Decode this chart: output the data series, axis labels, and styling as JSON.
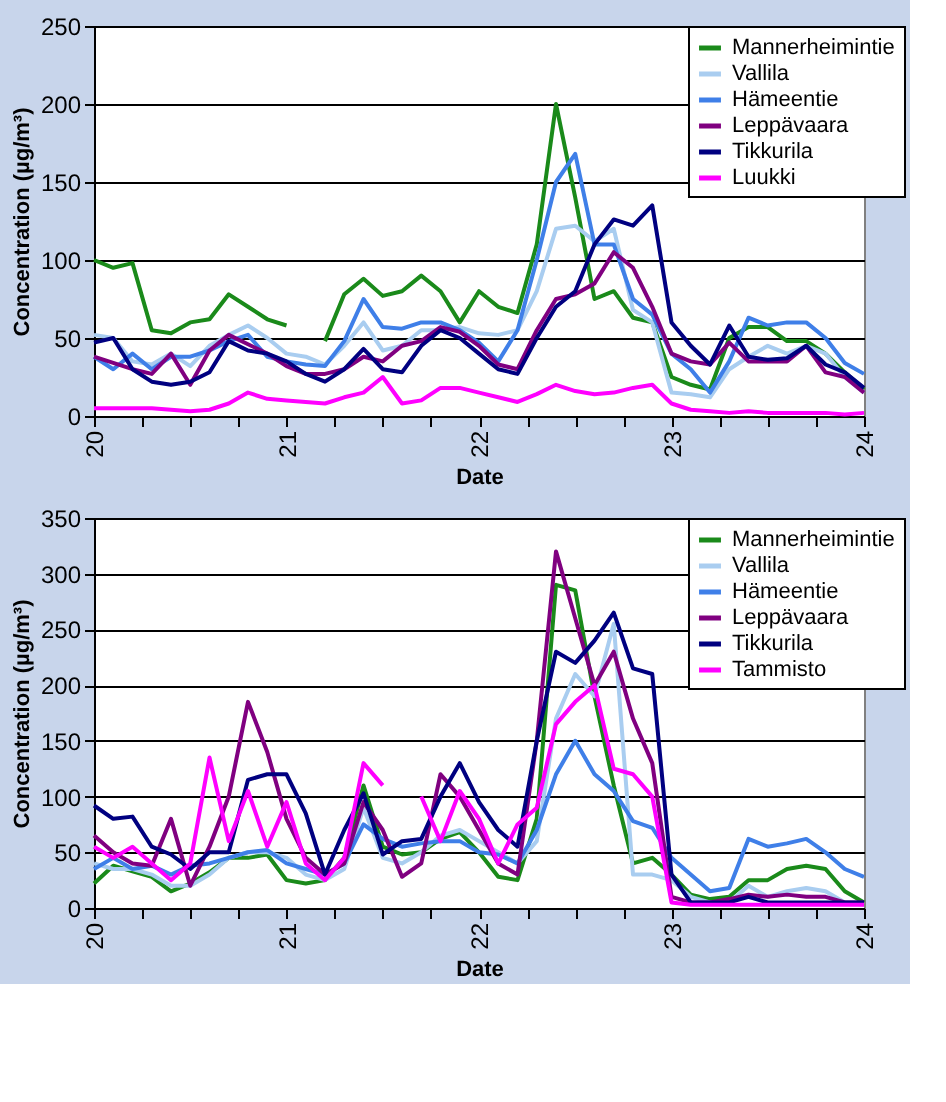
{
  "chart_data": [
    {
      "type": "line",
      "xlabel": "Date",
      "ylabel": "Concentration (µg/m³)",
      "xlim": [
        20,
        24
      ],
      "xticks": [
        20,
        {
          "value": 20.25,
          "label": null
        },
        {
          "value": 20.5,
          "label": null
        },
        {
          "value": 20.75,
          "label": null
        },
        21,
        {
          "value": 21.25,
          "label": null
        },
        {
          "value": 21.5,
          "label": null
        },
        {
          "value": 21.75,
          "label": null
        },
        22,
        {
          "value": 22.25,
          "label": null
        },
        {
          "value": 22.5,
          "label": null
        },
        {
          "value": 22.75,
          "label": null
        },
        23,
        {
          "value": 23.25,
          "label": null
        },
        {
          "value": 23.5,
          "label": null
        },
        {
          "value": 23.75,
          "label": null
        },
        24
      ],
      "ylim": [
        0,
        250
      ],
      "yticks": [
        0,
        50,
        100,
        150,
        200,
        250
      ],
      "grid": "y",
      "legend": "top right",
      "x": [
        20.0,
        20.1,
        20.2,
        20.3,
        20.4,
        20.5,
        20.6,
        20.7,
        20.8,
        20.9,
        21.0,
        21.1,
        21.2,
        21.3,
        21.4,
        21.5,
        21.6,
        21.7,
        21.8,
        21.9,
        22.0,
        22.1,
        22.2,
        22.3,
        22.4,
        22.5,
        22.6,
        22.7,
        22.8,
        22.9,
        23.0,
        23.1,
        23.2,
        23.3,
        23.4,
        23.5,
        23.6,
        23.7,
        23.8,
        23.9,
        24.0
      ],
      "series": [
        {
          "name": "Mannerheimintie",
          "color": "#1a8a1a",
          "values": [
            100,
            95,
            98,
            55,
            53,
            60,
            62,
            78,
            70,
            62,
            58,
            null,
            48,
            78,
            88,
            77,
            80,
            90,
            80,
            60,
            80,
            70,
            66,
            110,
            200,
            140,
            75,
            80,
            63,
            60,
            25,
            20,
            17,
            50,
            57,
            57,
            48,
            48,
            40,
            28,
            17
          ]
        },
        {
          "name": "Vallila",
          "color": "#a9cdf0",
          "values": [
            52,
            50,
            35,
            33,
            40,
            32,
            45,
            52,
            58,
            50,
            40,
            38,
            33,
            45,
            60,
            42,
            45,
            55,
            55,
            57,
            53,
            52,
            55,
            80,
            120,
            122,
            112,
            120,
            68,
            60,
            15,
            14,
            12,
            30,
            38,
            45,
            40,
            45,
            40,
            25,
            15
          ]
        },
        {
          "name": "Hämeentie",
          "color": "#3f7fe8",
          "values": [
            38,
            30,
            40,
            30,
            38,
            38,
            42,
            48,
            52,
            38,
            35,
            33,
            32,
            48,
            75,
            57,
            56,
            60,
            60,
            55,
            47,
            35,
            55,
            100,
            150,
            168,
            110,
            110,
            75,
            65,
            40,
            30,
            15,
            35,
            63,
            58,
            60,
            60,
            50,
            34,
            27
          ]
        },
        {
          "name": "Leppävaara",
          "color": "#800080",
          "values": [
            38,
            34,
            30,
            27,
            40,
            20,
            42,
            52,
            46,
            40,
            32,
            27,
            27,
            30,
            38,
            35,
            45,
            48,
            57,
            54,
            45,
            33,
            30,
            55,
            75,
            78,
            85,
            105,
            95,
            70,
            40,
            35,
            33,
            47,
            35,
            35,
            35,
            45,
            28,
            25,
            15
          ]
        },
        {
          "name": "Tikkurila",
          "color": "#000080",
          "values": [
            47,
            50,
            30,
            22,
            20,
            22,
            28,
            48,
            42,
            40,
            35,
            27,
            22,
            30,
            43,
            30,
            28,
            45,
            55,
            50,
            40,
            30,
            27,
            50,
            70,
            80,
            110,
            126,
            122,
            135,
            60,
            45,
            33,
            58,
            38,
            36,
            37,
            45,
            33,
            28,
            18
          ]
        },
        {
          "name": "Luukki",
          "color": "#ff00ff",
          "values": [
            5,
            5,
            5,
            5,
            4,
            3,
            4,
            8,
            15,
            11,
            10,
            9,
            8,
            12,
            15,
            25,
            8,
            10,
            18,
            18,
            15,
            12,
            9,
            14,
            20,
            16,
            14,
            15,
            18,
            20,
            8,
            4,
            3,
            2,
            3,
            2,
            2,
            2,
            2,
            1,
            2
          ]
        }
      ]
    },
    {
      "type": "line",
      "xlabel": "Date",
      "ylabel": "Concentration (µg/m³)",
      "xlim": [
        20,
        24
      ],
      "xticks": [
        20,
        {
          "value": 20.25,
          "label": null
        },
        {
          "value": 20.5,
          "label": null
        },
        {
          "value": 20.75,
          "label": null
        },
        21,
        {
          "value": 21.25,
          "label": null
        },
        {
          "value": 21.5,
          "label": null
        },
        {
          "value": 21.75,
          "label": null
        },
        22,
        {
          "value": 22.25,
          "label": null
        },
        {
          "value": 22.5,
          "label": null
        },
        {
          "value": 22.75,
          "label": null
        },
        23,
        {
          "value": 23.25,
          "label": null
        },
        {
          "value": 23.5,
          "label": null
        },
        {
          "value": 23.75,
          "label": null
        },
        24
      ],
      "ylim": [
        0,
        350
      ],
      "yticks": [
        0,
        50,
        100,
        150,
        200,
        250,
        300,
        350
      ],
      "grid": "y",
      "legend": "top right",
      "x": [
        20.0,
        20.1,
        20.2,
        20.3,
        20.4,
        20.5,
        20.6,
        20.7,
        20.8,
        20.9,
        21.0,
        21.1,
        21.2,
        21.3,
        21.4,
        21.5,
        21.6,
        21.7,
        21.8,
        21.9,
        22.0,
        22.1,
        22.2,
        22.3,
        22.4,
        22.5,
        22.6,
        22.7,
        22.8,
        22.9,
        23.0,
        23.1,
        23.2,
        23.3,
        23.4,
        23.5,
        23.6,
        23.7,
        23.8,
        23.9,
        24.0
      ],
      "series": [
        {
          "name": "Mannerheimintie",
          "color": "#1a8a1a",
          "values": [
            22,
            38,
            33,
            28,
            15,
            22,
            32,
            45,
            45,
            48,
            25,
            22,
            25,
            45,
            110,
            55,
            48,
            50,
            62,
            68,
            50,
            28,
            25,
            80,
            290,
            285,
            190,
            110,
            40,
            45,
            30,
            12,
            8,
            10,
            25,
            25,
            35,
            38,
            35,
            15,
            5
          ]
        },
        {
          "name": "Vallila",
          "color": "#a9cdf0",
          "values": [
            40,
            35,
            35,
            30,
            20,
            20,
            30,
            45,
            50,
            50,
            45,
            30,
            25,
            35,
            90,
            45,
            40,
            50,
            65,
            70,
            60,
            50,
            40,
            60,
            170,
            210,
            190,
            255,
            30,
            30,
            25,
            10,
            5,
            5,
            20,
            10,
            15,
            18,
            15,
            5,
            3
          ]
        },
        {
          "name": "Hämeentie",
          "color": "#3f7fe8",
          "values": [
            35,
            45,
            35,
            38,
            30,
            38,
            40,
            45,
            50,
            52,
            40,
            35,
            30,
            40,
            75,
            62,
            55,
            58,
            60,
            60,
            50,
            48,
            40,
            70,
            120,
            150,
            120,
            105,
            78,
            72,
            45,
            30,
            15,
            18,
            62,
            55,
            58,
            62,
            50,
            35,
            28
          ]
        },
        {
          "name": "Leppävaara",
          "color": "#800080",
          "values": [
            65,
            50,
            40,
            38,
            80,
            20,
            55,
            100,
            185,
            140,
            80,
            45,
            30,
            40,
            95,
            70,
            28,
            40,
            120,
            100,
            70,
            40,
            30,
            150,
            320,
            260,
            200,
            230,
            170,
            130,
            10,
            5,
            5,
            8,
            12,
            10,
            12,
            10,
            10,
            5,
            5
          ]
        },
        {
          "name": "Tikkurila",
          "color": "#000080",
          "values": [
            92,
            80,
            82,
            55,
            48,
            35,
            50,
            50,
            115,
            120,
            120,
            85,
            30,
            70,
            103,
            48,
            60,
            62,
            100,
            130,
            95,
            70,
            55,
            150,
            230,
            220,
            240,
            265,
            215,
            210,
            30,
            5,
            5,
            5,
            10,
            5,
            5,
            5,
            5,
            5,
            5
          ]
        },
        {
          "name": "Tammisto",
          "color": "#ff00ff",
          "values": [
            55,
            45,
            55,
            40,
            25,
            40,
            135,
            60,
            105,
            55,
            95,
            40,
            25,
            45,
            130,
            110,
            null,
            100,
            60,
            105,
            80,
            40,
            75,
            90,
            165,
            185,
            200,
            125,
            120,
            100,
            5,
            3,
            3,
            3,
            3,
            3,
            3,
            3,
            3,
            3,
            3
          ]
        }
      ]
    }
  ]
}
